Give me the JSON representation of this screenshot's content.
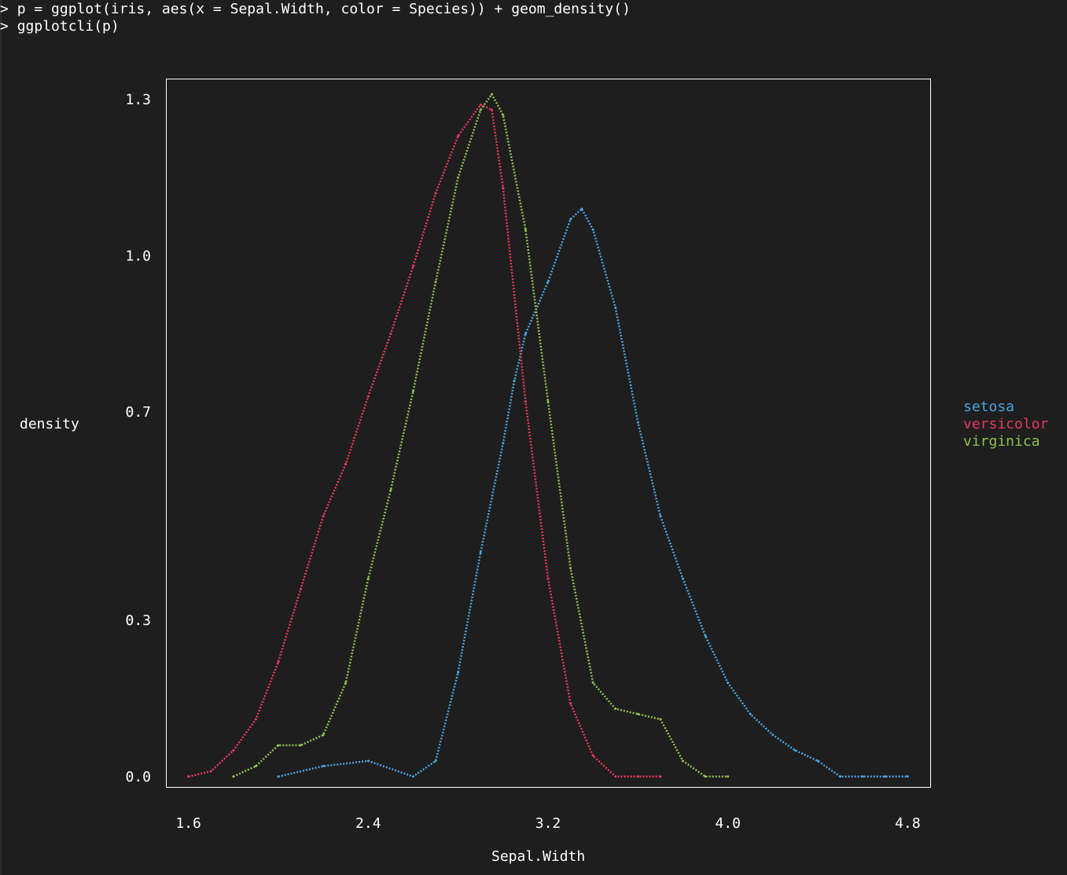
{
  "terminal": {
    "prompt": ">",
    "command1": "p = ggplot(iris, aes(x = Sepal.Width, color = Species)) + geom_density()",
    "command2": "ggplotcli(p)"
  },
  "chart_data": {
    "type": "line",
    "title": "",
    "xlabel": "Sepal.Width",
    "ylabel": "density",
    "xlim": [
      1.5,
      4.9
    ],
    "ylim": [
      -0.02,
      1.34
    ],
    "x_ticks": [
      1.6,
      2.4,
      3.2,
      4.0,
      4.8
    ],
    "x_tick_labels": [
      "1.6",
      "2.4",
      "3.2",
      "4.0",
      "4.8"
    ],
    "y_ticks": [
      0.0,
      0.3,
      0.7,
      1.0,
      1.3
    ],
    "y_tick_labels": [
      "0.0",
      "0.3",
      "0.7",
      "1.0",
      "1.3"
    ],
    "grid": false,
    "legend_position": "right",
    "series": [
      {
        "name": "setosa",
        "color": "#4aa3df",
        "x": [
          2.0,
          2.2,
          2.4,
          2.6,
          2.7,
          2.8,
          2.9,
          3.0,
          3.05,
          3.1,
          3.2,
          3.3,
          3.35,
          3.4,
          3.5,
          3.6,
          3.7,
          3.8,
          3.9,
          4.0,
          4.1,
          4.2,
          4.3,
          4.4,
          4.5,
          4.6,
          4.7,
          4.8
        ],
        "y": [
          0.0,
          0.02,
          0.03,
          0.0,
          0.03,
          0.2,
          0.43,
          0.64,
          0.76,
          0.85,
          0.95,
          1.07,
          1.09,
          1.05,
          0.9,
          0.68,
          0.5,
          0.38,
          0.27,
          0.18,
          0.12,
          0.08,
          0.05,
          0.03,
          0.0,
          0.0,
          0.0,
          0.0
        ]
      },
      {
        "name": "versicolor",
        "color": "#e8395f",
        "x": [
          1.6,
          1.7,
          1.8,
          1.9,
          2.0,
          2.1,
          2.2,
          2.3,
          2.4,
          2.5,
          2.6,
          2.7,
          2.8,
          2.9,
          2.95,
          3.0,
          3.1,
          3.2,
          3.3,
          3.4,
          3.5,
          3.6,
          3.7
        ],
        "y": [
          0.0,
          0.01,
          0.05,
          0.11,
          0.22,
          0.36,
          0.5,
          0.6,
          0.73,
          0.85,
          0.98,
          1.12,
          1.23,
          1.29,
          1.28,
          1.13,
          0.72,
          0.38,
          0.14,
          0.04,
          0.0,
          0.0,
          0.0
        ]
      },
      {
        "name": "virginica",
        "color": "#8ec04f",
        "x": [
          1.8,
          1.9,
          2.0,
          2.1,
          2.2,
          2.3,
          2.4,
          2.5,
          2.6,
          2.7,
          2.8,
          2.9,
          2.95,
          3.0,
          3.1,
          3.2,
          3.3,
          3.4,
          3.5,
          3.6,
          3.7,
          3.8,
          3.9,
          4.0
        ],
        "y": [
          0.0,
          0.02,
          0.06,
          0.06,
          0.08,
          0.18,
          0.38,
          0.55,
          0.74,
          0.95,
          1.15,
          1.28,
          1.31,
          1.27,
          1.05,
          0.72,
          0.4,
          0.18,
          0.13,
          0.12,
          0.11,
          0.03,
          0.0,
          0.0
        ]
      }
    ]
  }
}
